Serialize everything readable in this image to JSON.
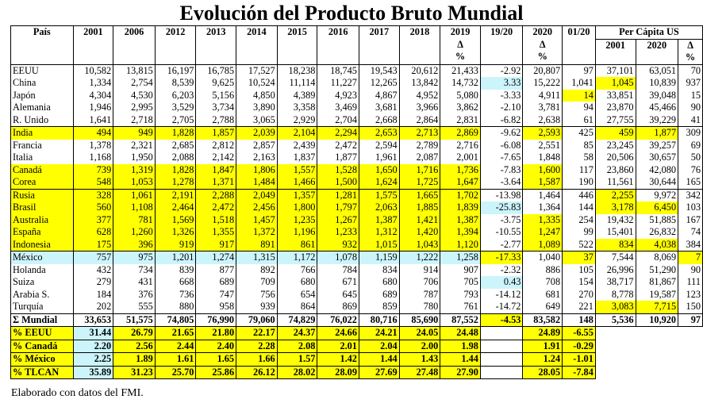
{
  "title": "Evolución del Producto Bruto Mundial",
  "header": {
    "row1": [
      "País",
      "2001",
      "2006",
      "2012",
      "2013",
      "2014",
      "2015",
      "2016",
      "2017",
      "2018",
      "2019",
      "19/20",
      "2020",
      "01/20",
      "Per Cápita US"
    ],
    "delta": "Δ",
    "pct": "%",
    "pc_years": [
      "2001",
      "2020"
    ],
    "pc_delta": "Δ",
    "pc_pct": "%"
  },
  "groups": [
    [
      {
        "cells": [
          "EEUU",
          "10,582",
          "13,815",
          "16,197",
          "16,785",
          "17,527",
          "18,238",
          "18,745",
          "19,543",
          "20,612",
          "21,433",
          "-2.92",
          "20,807",
          "97",
          "37,101",
          "63,051",
          "70"
        ],
        "hl": {}
      },
      {
        "cells": [
          "China",
          "1,334",
          "2,754",
          "8,539",
          "9,625",
          "10,524",
          "11,114",
          "11,227",
          "12,265",
          "13,842",
          "14,732",
          "3.33",
          "15,222",
          "1,041",
          "1,045",
          "10,839",
          "937"
        ],
        "hl": {
          "11": "b",
          "14": "y"
        }
      },
      {
        "cells": [
          "Japón",
          "4,304",
          "4,530",
          "6,203",
          "5,156",
          "4,850",
          "4,389",
          "4,923",
          "4,867",
          "4,952",
          "5,080",
          "-3.33",
          "4,911",
          "14",
          "33,851",
          "39,048",
          "15"
        ],
        "hl": {
          "13": "y"
        }
      },
      {
        "cells": [
          "Alemania",
          "1,946",
          "2,995",
          "3,529",
          "3,734",
          "3,890",
          "3,358",
          "3,469",
          "3,681",
          "3,966",
          "3,862",
          "-2.10",
          "3,781",
          "94",
          "23,870",
          "45,466",
          "90"
        ],
        "hl": {}
      },
      {
        "cells": [
          "R. Unido",
          "1,641",
          "2,718",
          "2,705",
          "2,788",
          "3,065",
          "2,929",
          "2,704",
          "2,668",
          "2,864",
          "2,831",
          "-6.82",
          "2,638",
          "61",
          "27,755",
          "39,229",
          "41"
        ],
        "hl": {}
      }
    ],
    [
      {
        "cells": [
          "India",
          "494",
          "949",
          "1,828",
          "1,857",
          "2,039",
          "2,104",
          "2,294",
          "2,653",
          "2,713",
          "2,869",
          "-9.62",
          "2,593",
          "425",
          "459",
          "1,877",
          "309"
        ],
        "hl": {
          "0": "y",
          "1": "y",
          "2": "y",
          "3": "y",
          "4": "y",
          "5": "y",
          "6": "y",
          "7": "y",
          "8": "y",
          "9": "y",
          "10": "y",
          "12": "y",
          "14": "y",
          "15": "y"
        }
      },
      {
        "cells": [
          "Francia",
          "1,378",
          "2,321",
          "2,685",
          "2,812",
          "2,857",
          "2,439",
          "2,472",
          "2,594",
          "2,789",
          "2,716",
          "-6.08",
          "2,551",
          "85",
          "23,245",
          "39,257",
          "69"
        ],
        "hl": {}
      },
      {
        "cells": [
          "Italia",
          "1,168",
          "1,950",
          "2,088",
          "2,142",
          "2,163",
          "1,837",
          "1,877",
          "1,961",
          "2,087",
          "2,001",
          "-7.65",
          "1,848",
          "58",
          "20,506",
          "30,657",
          "50"
        ],
        "hl": {}
      },
      {
        "cells": [
          "Canadá",
          "739",
          "1,319",
          "1,828",
          "1,847",
          "1,806",
          "1,557",
          "1,528",
          "1,650",
          "1,716",
          "1,736",
          "-7.83",
          "1,600",
          "117",
          "23,860",
          "42,080",
          "76"
        ],
        "hl": {
          "0": "y",
          "1": "y",
          "2": "y",
          "3": "y",
          "4": "y",
          "5": "y",
          "6": "y",
          "7": "y",
          "8": "y",
          "9": "y",
          "10": "y",
          "12": "y"
        }
      },
      {
        "cells": [
          "Corea",
          "548",
          "1,053",
          "1,278",
          "1,371",
          "1,484",
          "1,466",
          "1,500",
          "1,624",
          "1,725",
          "1,647",
          "-3.64",
          "1,587",
          "190",
          "11,561",
          "30,644",
          "165"
        ],
        "hl": {
          "0": "y",
          "1": "y",
          "2": "y",
          "3": "y",
          "4": "y",
          "5": "y",
          "6": "y",
          "7": "y",
          "8": "y",
          "9": "y",
          "10": "y",
          "12": "y"
        }
      }
    ],
    [
      {
        "cells": [
          "Rusia",
          "328",
          "1,061",
          "2,191",
          "2,288",
          "2,049",
          "1,357",
          "1,281",
          "1,575",
          "1,665",
          "1,702",
          "-13.98",
          "1,464",
          "446",
          "2,255",
          "9,972",
          "342"
        ],
        "hl": {
          "0": "y",
          "1": "y",
          "2": "y",
          "3": "y",
          "4": "y",
          "5": "y",
          "6": "y",
          "7": "y",
          "8": "y",
          "9": "y",
          "10": "y",
          "14": "y"
        }
      },
      {
        "cells": [
          "Brasil",
          "560",
          "1,108",
          "2,464",
          "2,472",
          "2,456",
          "1,800",
          "1,797",
          "2,063",
          "1,885",
          "1,839",
          "-25.83",
          "1,364",
          "144",
          "3,178",
          "6,450",
          "103"
        ],
        "hl": {
          "0": "y",
          "1": "y",
          "2": "y",
          "3": "y",
          "4": "y",
          "5": "y",
          "6": "y",
          "7": "y",
          "8": "y",
          "9": "y",
          "10": "y",
          "11": "b",
          "14": "y",
          "15": "y"
        }
      },
      {
        "cells": [
          "Australia",
          "377",
          "781",
          "1,569",
          "1,518",
          "1,457",
          "1,235",
          "1,267",
          "1,387",
          "1,421",
          "1,387",
          "-3.75",
          "1,335",
          "254",
          "19,432",
          "51,885",
          "167"
        ],
        "hl": {
          "0": "y",
          "1": "y",
          "2": "y",
          "3": "y",
          "4": "y",
          "5": "y",
          "6": "y",
          "7": "y",
          "8": "y",
          "9": "y",
          "10": "y",
          "12": "y"
        }
      },
      {
        "cells": [
          "España",
          "628",
          "1,260",
          "1,326",
          "1,355",
          "1,372",
          "1,196",
          "1,233",
          "1,312",
          "1,420",
          "1,394",
          "-10.55",
          "1,247",
          "99",
          "15,401",
          "26,832",
          "74"
        ],
        "hl": {
          "0": "y",
          "1": "y",
          "2": "y",
          "3": "y",
          "4": "y",
          "5": "y",
          "6": "y",
          "7": "y",
          "8": "y",
          "9": "y",
          "10": "y",
          "12": "y"
        }
      },
      {
        "cells": [
          "Indonesia",
          "175",
          "396",
          "919",
          "917",
          "891",
          "861",
          "932",
          "1,015",
          "1,043",
          "1,120",
          "-2.77",
          "1,089",
          "522",
          "834",
          "4,038",
          "384"
        ],
        "hl": {
          "0": "y",
          "1": "y",
          "2": "y",
          "3": "y",
          "4": "y",
          "5": "y",
          "6": "y",
          "7": "y",
          "8": "y",
          "9": "y",
          "10": "y",
          "12": "y",
          "14": "y",
          "15": "y"
        }
      }
    ],
    [
      {
        "cells": [
          "México",
          "757",
          "975",
          "1,201",
          "1,274",
          "1,315",
          "1,172",
          "1,078",
          "1,159",
          "1,222",
          "1,258",
          "-17.33",
          "1,040",
          "37",
          "7,544",
          "8,069",
          "7"
        ],
        "hl": {
          "0": "b",
          "1": "b",
          "2": "b",
          "3": "b",
          "4": "b",
          "5": "b",
          "6": "b",
          "7": "b",
          "8": "b",
          "9": "b",
          "10": "b",
          "11": "y",
          "13": "y",
          "16": "y"
        }
      },
      {
        "cells": [
          "Holanda",
          "432",
          "734",
          "839",
          "877",
          "892",
          "766",
          "784",
          "834",
          "914",
          "907",
          "-2.32",
          "886",
          "105",
          "26,996",
          "51,290",
          "90"
        ],
        "hl": {}
      },
      {
        "cells": [
          "Suiza",
          "279",
          "431",
          "668",
          "689",
          "709",
          "680",
          "671",
          "680",
          "706",
          "705",
          "0.43",
          "708",
          "154",
          "38,717",
          "81,867",
          "111"
        ],
        "hl": {
          "11": "b"
        }
      },
      {
        "cells": [
          "Arabia S.",
          "184",
          "376",
          "736",
          "747",
          "756",
          "654",
          "645",
          "689",
          "787",
          "793",
          "-14.12",
          "681",
          "270",
          "8,778",
          "19,587",
          "123"
        ],
        "hl": {}
      },
      {
        "cells": [
          "Turquía",
          "202",
          "555",
          "880",
          "958",
          "939",
          "864",
          "869",
          "859",
          "780",
          "761",
          "-14.72",
          "649",
          "221",
          "3,083",
          "7,715",
          "150"
        ],
        "hl": {
          "14": "y",
          "15": "y"
        }
      }
    ]
  ],
  "mundial": {
    "cells": [
      "Σ Mundial",
      "33,653",
      "51,575",
      "74,805",
      "76,990",
      "79,060",
      "74,829",
      "76,022",
      "80,716",
      "85,690",
      "87,552",
      "-4.53",
      "83,582",
      "148",
      "5,536",
      "10,920",
      "97"
    ],
    "hl": {
      "11": "y"
    }
  },
  "pct_rows": [
    {
      "label": "% EEUU",
      "values": [
        "31.44",
        "26.79",
        "21.65",
        "21.80",
        "22.17",
        "24.37",
        "24.66",
        "24.21",
        "24.05",
        "24.48"
      ],
      "v2020": "24.89",
      "v0120": "-6.55",
      "hl": {
        "0": "y",
        "1": "b",
        "2": "y",
        "3": "y",
        "4": "y",
        "5": "y",
        "6": "y",
        "7": "y",
        "8": "y",
        "9": "y",
        "10": "y",
        "12": "y",
        "13": "y"
      }
    },
    {
      "label": "% Canadá",
      "values": [
        "2.20",
        "2.56",
        "2.44",
        "2.40",
        "2.28",
        "2.08",
        "2.01",
        "2.04",
        "2.00",
        "1.98"
      ],
      "v2020": "1.91",
      "v0120": "-0.29",
      "hl": {
        "0": "y",
        "1": "b",
        "2": "y",
        "3": "y",
        "4": "y",
        "5": "y",
        "6": "y",
        "7": "y",
        "8": "y",
        "9": "y",
        "10": "y",
        "12": "y",
        "13": "y"
      }
    },
    {
      "label": "% México",
      "values": [
        "2.25",
        "1.89",
        "1.61",
        "1.65",
        "1.66",
        "1.57",
        "1.42",
        "1.44",
        "1.43",
        "1.44"
      ],
      "v2020": "1.24",
      "v0120": "-1.01",
      "hl": {
        "0": "y",
        "1": "b",
        "2": "y",
        "3": "y",
        "4": "y",
        "5": "y",
        "6": "y",
        "7": "y",
        "8": "y",
        "9": "y",
        "10": "y",
        "12": "y",
        "13": "y"
      }
    },
    {
      "label": "% TLCAN",
      "values": [
        "35.89",
        "31.23",
        "25.70",
        "25.86",
        "26.12",
        "28.02",
        "28.09",
        "27.69",
        "27.48",
        "27.90"
      ],
      "v2020": "28.05",
      "v0120": "-7.84",
      "hl": {
        "0": "y",
        "1": "b",
        "2": "y",
        "3": "y",
        "4": "y",
        "5": "y",
        "6": "y",
        "7": "y",
        "8": "y",
        "9": "y",
        "10": "y",
        "12": "y",
        "13": "y"
      }
    }
  ],
  "footer": "Elaborado con datos del FMI."
}
